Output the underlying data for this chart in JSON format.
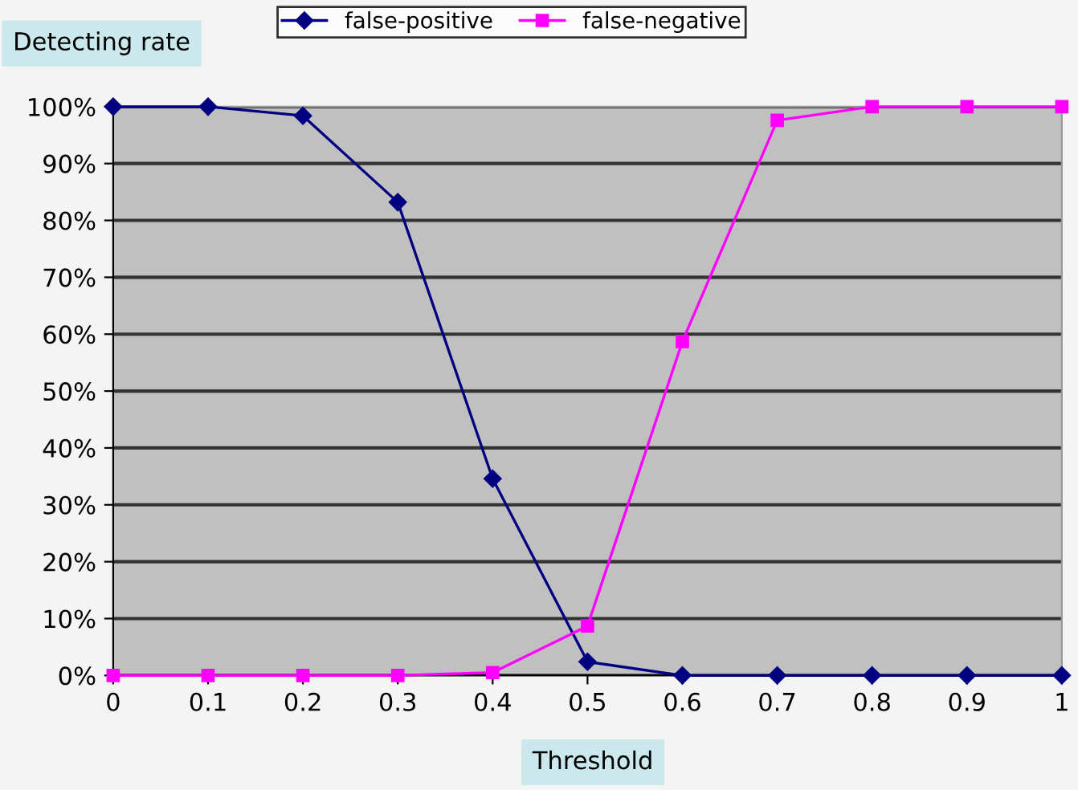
{
  "chart_data": {
    "type": "line",
    "ylabel": "Detecting rate",
    "xlabel": "Threshold",
    "x": [
      0,
      0.1,
      0.2,
      0.3,
      0.4,
      0.5,
      0.6,
      0.7,
      0.8,
      0.9,
      1
    ],
    "series": [
      {
        "name": "false-positive",
        "color": "#000080",
        "marker": "diamond",
        "values": [
          100,
          100,
          98.4,
          83.2,
          34.6,
          2.4,
          0,
          0,
          0,
          0,
          0
        ]
      },
      {
        "name": "false-negative",
        "color": "#ff00ff",
        "marker": "square",
        "values": [
          0,
          0,
          0,
          0,
          0.5,
          8.7,
          58.7,
          97.6,
          100,
          100,
          100
        ]
      }
    ],
    "xlim": [
      0,
      1
    ],
    "xticks": [
      0,
      0.1,
      0.2,
      0.3,
      0.4,
      0.5,
      0.6,
      0.7,
      0.8,
      0.9,
      1
    ],
    "ylim": [
      0,
      100
    ],
    "yticks": [
      {
        "value": 0,
        "label": "0%"
      },
      {
        "value": 10,
        "label": "10%"
      },
      {
        "value": 20,
        "label": "20%"
      },
      {
        "value": 30,
        "label": "30%"
      },
      {
        "value": 40,
        "label": "40%"
      },
      {
        "value": 50,
        "label": "50%"
      },
      {
        "value": 60,
        "label": "60%"
      },
      {
        "value": 70,
        "label": "70%"
      },
      {
        "value": 80,
        "label": "80%"
      },
      {
        "value": 90,
        "label": "90%"
      },
      {
        "value": 100,
        "label": "100%"
      }
    ],
    "grid": "y",
    "legend": "top",
    "line_style": "solid"
  }
}
